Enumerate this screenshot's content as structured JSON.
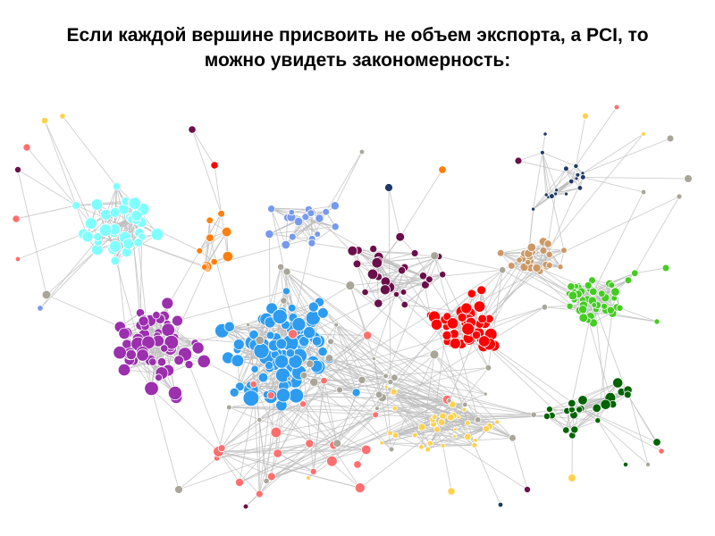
{
  "slide": {
    "title_line1": "Если каждой вершине присвоить не объем экспорта, а PCI, то",
    "title_line2": "можно увидеть закономерность:"
  },
  "network": {
    "edge_color": "#bdbdbd",
    "clusters": [
      {
        "name": "light-cyan",
        "color": "#7fffff"
      },
      {
        "name": "purple",
        "color": "#9b2fae"
      },
      {
        "name": "sky-blue",
        "color": "#2d9cf0"
      },
      {
        "name": "red",
        "color": "#ff0000"
      },
      {
        "name": "green",
        "color": "#44cc22"
      },
      {
        "name": "dark-green",
        "color": "#006400"
      },
      {
        "name": "tan",
        "color": "#cc9966"
      },
      {
        "name": "orange",
        "color": "#ff7f0e"
      },
      {
        "name": "dark-purple",
        "color": "#6b0f4a"
      },
      {
        "name": "navy",
        "color": "#1f3a66"
      },
      {
        "name": "periwinkle",
        "color": "#7799ee"
      },
      {
        "name": "yellow",
        "color": "#ffd24d"
      },
      {
        "name": "salmon",
        "color": "#ff6f6f"
      },
      {
        "name": "gray",
        "color": "#a9a598"
      }
    ]
  }
}
